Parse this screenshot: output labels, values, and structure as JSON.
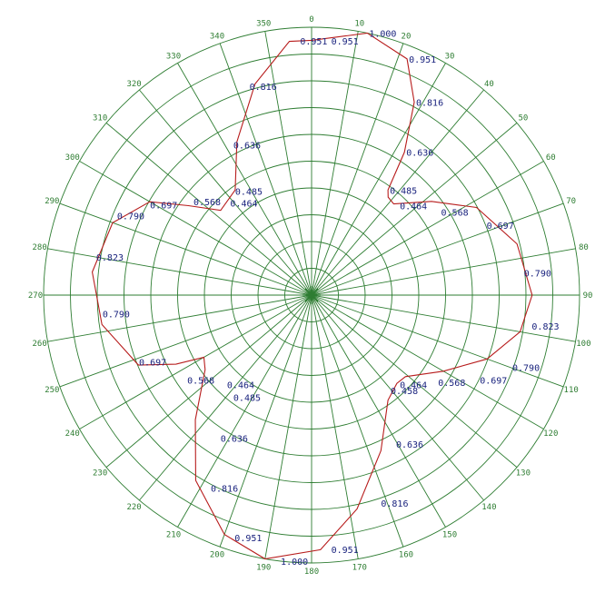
{
  "chart_data": {
    "type": "polar-line",
    "angle_ticks": [
      0,
      10,
      20,
      30,
      40,
      50,
      60,
      70,
      80,
      90,
      100,
      110,
      120,
      130,
      140,
      150,
      160,
      170,
      180,
      190,
      200,
      210,
      220,
      230,
      240,
      250,
      260,
      270,
      280,
      290,
      300,
      310,
      320,
      330,
      340,
      350
    ],
    "r_max": 1.0,
    "ring_count": 10,
    "spoke_step_deg": 10,
    "grid": true,
    "colors": {
      "grid": "#2e7d32",
      "series": "#b71c1c",
      "labels": "#1a237e"
    },
    "series": [
      {
        "angles": [
          0,
          12,
          22,
          28,
          33,
          36,
          38,
          42,
          52,
          62,
          76,
          90,
          100,
          110,
          120,
          131,
          136,
          144,
          156,
          168,
          178,
          190,
          200,
          212,
          223,
          235,
          240,
          243,
          248,
          262,
          276,
          290,
          300,
          306,
          313,
          324,
          334,
          345,
          355
        ],
        "values": [
          0.951,
          1.0,
          0.951,
          0.816,
          0.636,
          0.485,
          0.464,
          0.458,
          0.568,
          0.697,
          0.79,
          0.823,
          0.79,
          0.697,
          0.568,
          0.464,
          0.458,
          0.485,
          0.636,
          0.816,
          0.951,
          1.0,
          0.951,
          0.816,
          0.636,
          0.485,
          0.464,
          0.568,
          0.697,
          0.79,
          0.823,
          0.79,
          0.697,
          0.568,
          0.464,
          0.485,
          0.636,
          0.816,
          0.951
        ]
      }
    ],
    "value_labels": [
      {
        "angle": 4,
        "r": 0.951,
        "text": "0.951"
      },
      {
        "angle": 12,
        "r": 1.0,
        "text": "1.000"
      },
      {
        "angle": 22,
        "r": 0.951,
        "text": "0.951"
      },
      {
        "angle": 28,
        "r": 0.816,
        "text": "0.816"
      },
      {
        "angle": 33,
        "r": 0.636,
        "text": "0.636"
      },
      {
        "angle": 36,
        "r": 0.485,
        "text": "0.485"
      },
      {
        "angle": 44,
        "r": 0.464,
        "text": "0.464"
      },
      {
        "angle": 57,
        "r": 0.568,
        "text": "0.568"
      },
      {
        "angle": 68,
        "r": 0.697,
        "text": "0.697"
      },
      {
        "angle": 84,
        "r": 0.79,
        "text": "0.790"
      },
      {
        "angle": 98,
        "r": 0.823,
        "text": "0.823"
      },
      {
        "angle": 110,
        "r": 0.79,
        "text": "0.790"
      },
      {
        "angle": 117,
        "r": 0.697,
        "text": "0.697"
      },
      {
        "angle": 125,
        "r": 0.568,
        "text": "0.568"
      },
      {
        "angle": 136,
        "r": 0.464,
        "text": "0.464"
      },
      {
        "angle": 141,
        "r": 0.458,
        "text": "0.458"
      },
      {
        "angle": 151,
        "r": 0.636,
        "text": "0.636"
      },
      {
        "angle": 162,
        "r": 0.816,
        "text": "0.816"
      },
      {
        "angle": 176,
        "r": 0.951,
        "text": "0.951"
      },
      {
        "angle": 187,
        "r": 1.0,
        "text": "1.000"
      },
      {
        "angle": 198,
        "r": 0.951,
        "text": "0.951"
      },
      {
        "angle": 208,
        "r": 0.816,
        "text": "0.816"
      },
      {
        "angle": 213,
        "r": 0.636,
        "text": "0.636"
      },
      {
        "angle": 218,
        "r": 0.485,
        "text": "0.485"
      },
      {
        "angle": 224,
        "r": 0.464,
        "text": "0.464"
      },
      {
        "angle": 236,
        "r": 0.568,
        "text": "0.568"
      },
      {
        "angle": 249,
        "r": 0.697,
        "text": "0.697"
      },
      {
        "angle": 265,
        "r": 0.79,
        "text": "0.790"
      },
      {
        "angle": 280,
        "r": 0.823,
        "text": "0.823"
      },
      {
        "angle": 292,
        "r": 0.79,
        "text": "0.790"
      },
      {
        "angle": 299,
        "r": 0.697,
        "text": "0.697"
      },
      {
        "angle": 308,
        "r": 0.568,
        "text": "0.568"
      },
      {
        "angle": 318,
        "r": 0.464,
        "text": "0.464"
      },
      {
        "angle": 323,
        "r": 0.485,
        "text": "0.485"
      },
      {
        "angle": 332,
        "r": 0.636,
        "text": "0.636"
      },
      {
        "angle": 343,
        "r": 0.816,
        "text": "0.816"
      },
      {
        "angle": 357,
        "r": 0.951,
        "text": "0.951"
      }
    ]
  }
}
